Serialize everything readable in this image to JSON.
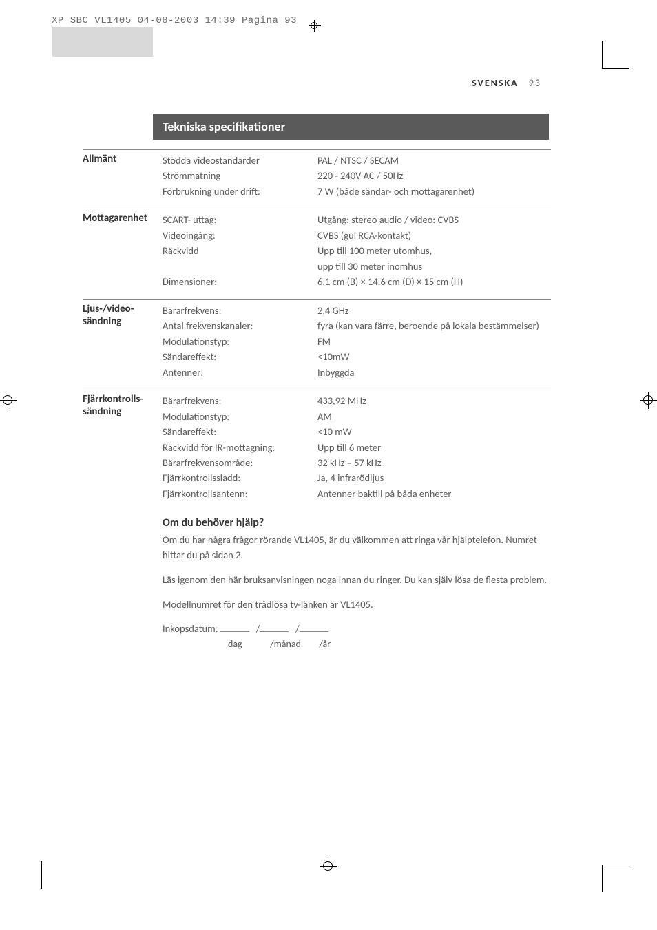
{
  "meta": {
    "headerLine": "XP SBC VL1405  04-08-2003 14:39  Pagina 93",
    "language": "SVENSKA",
    "pageNumber": "93"
  },
  "sectionTitle": "Tekniska specifikationer",
  "rows": [
    {
      "label": "Allmänt",
      "pairs": [
        {
          "k": "Stödda videostandarder",
          "v": "PAL / NTSC / SECAM"
        },
        {
          "k": "Strömmatning",
          "v": "220 - 240V AC / 50Hz"
        },
        {
          "k": "Förbrukning under drift:",
          "v": "7 W (både sändar- och mottagarenhet)"
        }
      ]
    },
    {
      "label": "Mottagarenhet",
      "pairs": [
        {
          "k": "SCART- uttag:",
          "v": "Utgång: stereo audio / video: CVBS"
        },
        {
          "k": "Videoingång:",
          "v": "CVBS (gul RCA-kontakt)"
        },
        {
          "k": "Räckvidd",
          "v": "Upp till 100 meter utomhus,"
        },
        {
          "k": "",
          "v": "upp till 30 meter inomhus"
        },
        {
          "k": "Dimensioner:",
          "v": "6.1 cm (B) × 14.6 cm (D) × 15 cm (H)"
        }
      ]
    },
    {
      "label": "Ljus-/video-\nsändning",
      "pairs": [
        {
          "k": "Bärarfrekvens:",
          "v": "2,4 GHz"
        },
        {
          "k": "Antal frekvenskanaler:",
          "v": "fyra (kan vara färre, beroende på lokala bestämmelser)"
        },
        {
          "k": "Modulationstyp:",
          "v": "FM"
        },
        {
          "k": "Sändareffekt:",
          "v": "<10mW"
        },
        {
          "k": "Antenner:",
          "v": "Inbyggda"
        }
      ]
    },
    {
      "label": "Fjärrkontrolls-\nsändning",
      "pairs": [
        {
          "k": "Bärarfrekvens:",
          "v": "433,92 MHz"
        },
        {
          "k": "Modulationstyp:",
          "v": "AM"
        },
        {
          "k": "Sändareffekt:",
          "v": "<10 mW"
        },
        {
          "k": "Räckvidd för IR-mottagning:",
          "v": "Upp till 6 meter"
        },
        {
          "k": "Bärarfrekvensområde:",
          "v": "32 kHz – 57 kHz"
        },
        {
          "k": "Fjärrkontrollssladd:",
          "v": "Ja, 4 infrarödljus"
        },
        {
          "k": "Fjärrkontrollsantenn:",
          "v": "Antenner baktill på båda enheter"
        }
      ]
    }
  ],
  "help": {
    "title": "Om du behöver hjälp?",
    "p1": "Om du har några frågor rörande VL1405, är du välkommen att ringa vår hjälptelefon. Numret hittar du på sidan 2.",
    "p2": "Läs igenom den här bruksanvisningen noga innan du ringer. Du kan själv lösa de flesta problem.",
    "p3": "Modellnumret för den trådlösa tv-länken är VL1405.",
    "purchaseLabel": "Inköpsdatum:",
    "sub1": "dag",
    "sub2": "/månad",
    "sub3": "/år"
  }
}
